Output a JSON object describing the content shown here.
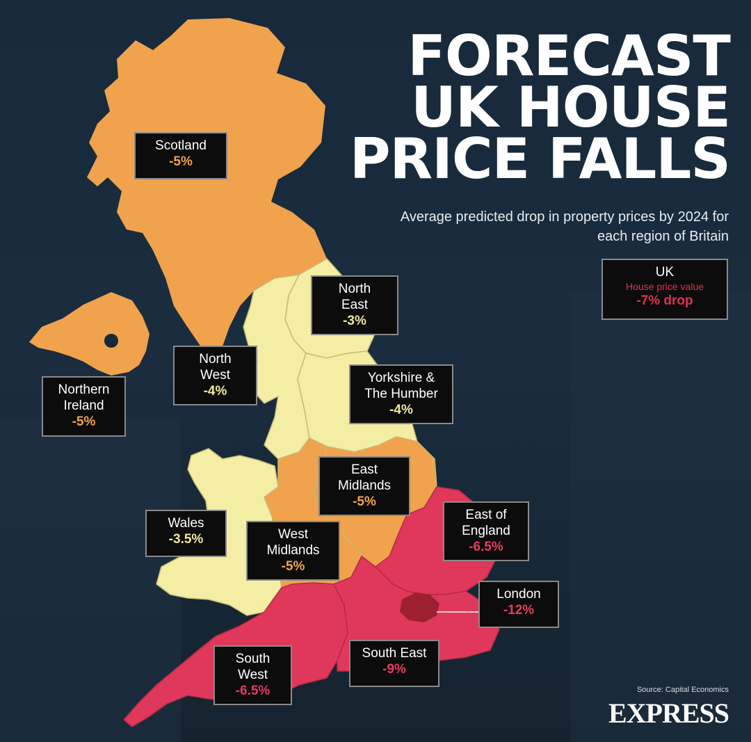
{
  "title_lines": [
    "FORECAST",
    "UK HOUSE",
    "PRICE FALLS"
  ],
  "subtitle": "Average predicted drop in property prices by 2024 for each region of Britain",
  "colors": {
    "background": "#17293a",
    "yellow": "#f3eea4",
    "orange": "#f0a24c",
    "red": "#e0385a",
    "london": "#9c2030"
  },
  "uk_box": {
    "title": "UK",
    "subtitle": "House price value",
    "value": "-7% drop"
  },
  "regions": {
    "scotland": {
      "name": "Scotland",
      "value": "-5%"
    },
    "northern_ireland": {
      "name_line1": "Northern",
      "name_line2": "Ireland",
      "value": "-5%"
    },
    "north_east": {
      "name_line1": "North",
      "name_line2": "East",
      "value": "-3%"
    },
    "north_west": {
      "name_line1": "North",
      "name_line2": "West",
      "value": "-4%"
    },
    "yorkshire": {
      "name_line1": "Yorkshire &",
      "name_line2": "The Humber",
      "value": "-4%"
    },
    "east_midlands": {
      "name_line1": "East",
      "name_line2": "Midlands",
      "value": "-5%"
    },
    "wales": {
      "name": "Wales",
      "value": "-3.5%"
    },
    "west_midlands": {
      "name_line1": "West",
      "name_line2": "Midlands",
      "value": "-5%"
    },
    "east_of_england": {
      "name_line1": "East of",
      "name_line2": "England",
      "value": "-6.5%"
    },
    "london": {
      "name": "London",
      "value": "-12%"
    },
    "south_east": {
      "name": "South East",
      "value": "-9%"
    },
    "south_west": {
      "name_line1": "South",
      "name_line2": "West",
      "value": "-6.5%"
    }
  },
  "source": "Source: Capital Economics",
  "logo_text": "EXPRESS"
}
